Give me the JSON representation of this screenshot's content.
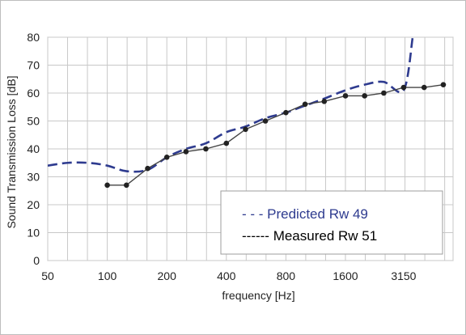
{
  "chart_data": {
    "type": "line",
    "xlabel": "frequency [Hz]",
    "ylabel": "Sound Transmission Loss [dB]",
    "x_scale": "log (one-third octave bands)",
    "x_tick_labels": [
      "50",
      "100",
      "200",
      "400",
      "800",
      "1600",
      "3150"
    ],
    "x_tick_values": [
      50,
      100,
      200,
      400,
      800,
      1600,
      3150
    ],
    "y_ticks": [
      0,
      10,
      20,
      30,
      40,
      50,
      60,
      70,
      80
    ],
    "ylim": [
      0,
      80
    ],
    "grid": true,
    "legend_placement": "bottom-right",
    "colors": {
      "predicted": "#2e3b8f",
      "measured": "#444444",
      "grid": "#c8c8c8"
    },
    "legend": [
      {
        "text": "- - - Predicted Rw 49",
        "color": "#2e3b8f"
      },
      {
        "text": "------ Measured Rw 51",
        "color": "#000000"
      }
    ],
    "series": [
      {
        "key": "predicted",
        "style": "dashed",
        "x": [
          50,
          63,
          80,
          100,
          125,
          160,
          200,
          250,
          315,
          400,
          500,
          630,
          800,
          1000,
          1250,
          1600,
          2000,
          2500,
          3150,
          3500
        ],
        "values": [
          34,
          35,
          35,
          34,
          32,
          32.5,
          37,
          40,
          42,
          46,
          48,
          51,
          53,
          55.5,
          58,
          61,
          63,
          64,
          61,
          80
        ]
      },
      {
        "key": "measured",
        "style": "solid-with-markers",
        "x": [
          100,
          125,
          160,
          200,
          250,
          315,
          400,
          500,
          630,
          800,
          1000,
          1250,
          1600,
          2000,
          2500,
          3150,
          4000,
          5000
        ],
        "values": [
          27,
          27,
          33,
          37,
          39,
          40,
          42,
          47,
          50,
          53,
          56,
          57,
          59,
          59,
          60,
          62,
          62,
          63
        ]
      }
    ]
  }
}
